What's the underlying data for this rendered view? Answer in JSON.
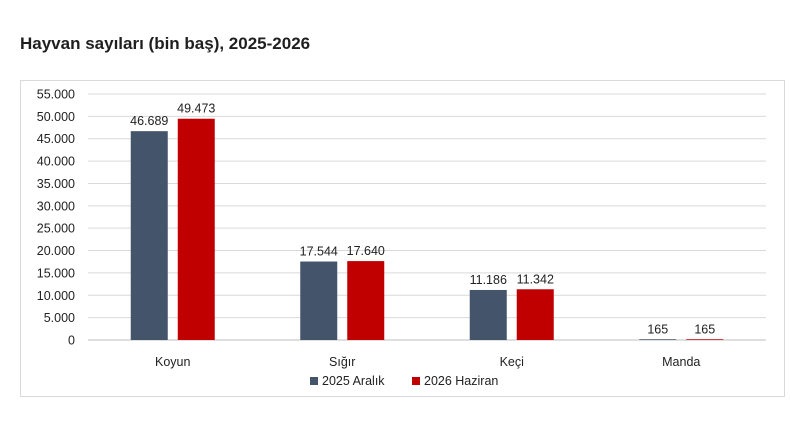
{
  "page": {
    "title": "Hayvan sayıları (bin baş), 2025-2026"
  },
  "colors": {
    "series_1": "#44546a",
    "series_2": "#c00000",
    "grid": "#d9d9d9"
  },
  "chart_data": {
    "type": "bar",
    "title": "",
    "xlabel": "",
    "ylabel": "",
    "categories": [
      "Koyun",
      "Sığır",
      "Keçi",
      "Manda"
    ],
    "series": [
      {
        "name": "2025 Aralık",
        "values": [
          46689,
          17544,
          11186,
          165
        ],
        "labels": [
          "46.689",
          "17.544",
          "11.186",
          "165"
        ]
      },
      {
        "name": "2026 Haziran",
        "values": [
          49473,
          17640,
          11342,
          165
        ],
        "labels": [
          "49.473",
          "17.640",
          "11.342",
          "165"
        ]
      }
    ],
    "ylim": [
      0,
      55000
    ],
    "yticks": [
      0,
      5000,
      10000,
      15000,
      20000,
      25000,
      30000,
      35000,
      40000,
      45000,
      50000,
      55000
    ],
    "ytick_labels": [
      "0",
      "5.000",
      "10.000",
      "15.000",
      "20.000",
      "25.000",
      "30.000",
      "35.000",
      "40.000",
      "45.000",
      "50.000",
      "55.000"
    ],
    "grid": true,
    "legend_position": "bottom"
  }
}
